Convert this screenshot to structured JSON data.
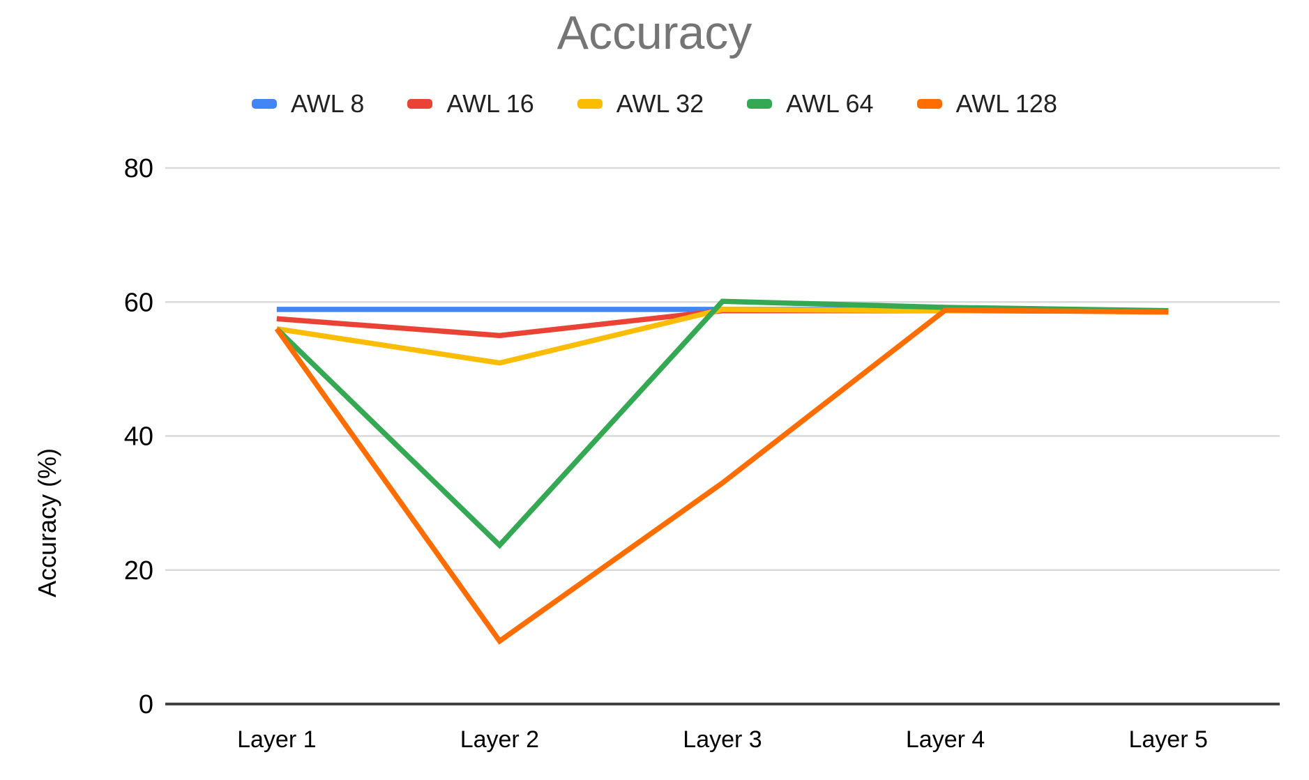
{
  "chart_data": {
    "type": "line",
    "title": "Accuracy",
    "xlabel": "",
    "ylabel": "Accuracy (%)",
    "categories": [
      "Layer 1",
      "Layer 2",
      "Layer 3",
      "Layer 4",
      "Layer 5"
    ],
    "y_ticks": [
      0,
      20,
      40,
      60,
      80
    ],
    "ylim": [
      0,
      85
    ],
    "grid": true,
    "legend_position": "top",
    "series": [
      {
        "name": "AWL 8",
        "color": "#4285F4",
        "values": [
          58.9,
          58.9,
          58.9,
          58.9,
          58.7
        ]
      },
      {
        "name": "AWL 16",
        "color": "#EA4335",
        "values": [
          57.5,
          55.0,
          58.7,
          58.7,
          58.6
        ]
      },
      {
        "name": "AWL 32",
        "color": "#FBBC04",
        "values": [
          56.0,
          50.9,
          58.9,
          58.7,
          58.7
        ]
      },
      {
        "name": "AWL 64",
        "color": "#34A853",
        "values": [
          56.0,
          23.7,
          60.1,
          59.2,
          58.7
        ]
      },
      {
        "name": "AWL 128",
        "color": "#FF6D01",
        "values": [
          56.0,
          9.4,
          33.0,
          58.8,
          58.5
        ]
      }
    ],
    "title_color": "#757575",
    "label_color": "#000000",
    "axis_color": "#424242",
    "gridline_color": "#d9d9d9"
  }
}
